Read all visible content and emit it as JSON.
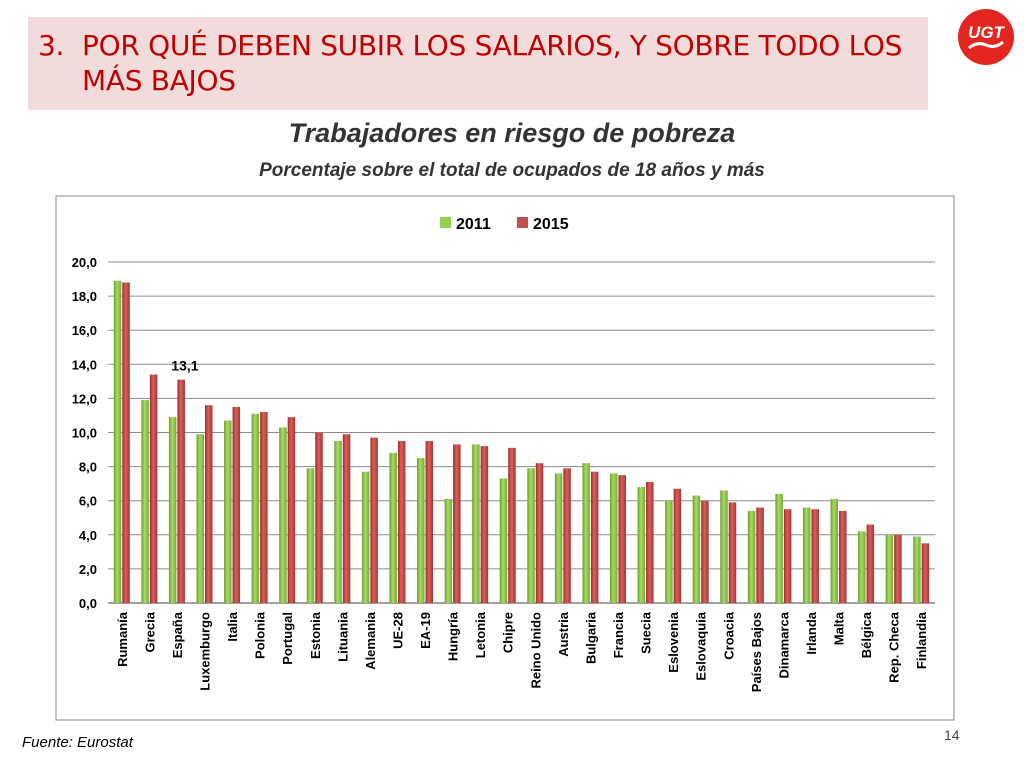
{
  "slide": {
    "title_number": "3.",
    "title_line1": "POR QUÉ DEBEN SUBIR LOS SALARIOS, Y SOBRE TODO LOS",
    "title_line2": "MÁS BAJOS",
    "logo_text": "UGT",
    "source": "Fuente: Eurostat",
    "page_number": "14"
  },
  "colors": {
    "title": "#c00000",
    "title_bg": "#f2dcdb",
    "series_2011": "#92d050",
    "series_2015": "#c0504d",
    "logo": "#e3261f"
  },
  "chart_data": {
    "type": "bar",
    "title": "Trabajadores en riesgo de pobreza",
    "subtitle": "Porcentaje sobre el total de ocupados de 18 años y más",
    "xlabel": "",
    "ylabel": "",
    "ylim": [
      0,
      20
    ],
    "yticks": [
      "0,0",
      "2,0",
      "4,0",
      "6,0",
      "8,0",
      "10,0",
      "12,0",
      "14,0",
      "16,0",
      "18,0",
      "20,0"
    ],
    "grid": true,
    "legend_position": "top-center",
    "categories": [
      "Rumanía",
      "Grecia",
      "España",
      "Luxemburgo",
      "Italia",
      "Polonia",
      "Portugal",
      "Estonia",
      "Lituania",
      "Alemania",
      "UE-28",
      "EA-19",
      "Hungría",
      "Letonia",
      "Chipre",
      "Reino Unido",
      "Austria",
      "Bulgaria",
      "Francia",
      "Suecia",
      "Eslovenia",
      "Eslovaquia",
      "Croacia",
      "Países Bajos",
      "Dinamarca",
      "Irlanda",
      "Malta",
      "Bélgica",
      "Rep. Checa",
      "Finlandia"
    ],
    "series": [
      {
        "name": "2011",
        "values": [
          18.9,
          11.9,
          10.9,
          9.9,
          10.7,
          11.1,
          10.3,
          7.9,
          9.5,
          7.7,
          8.8,
          8.5,
          6.1,
          9.3,
          7.3,
          7.9,
          7.6,
          8.2,
          7.6,
          6.8,
          6.0,
          6.3,
          6.6,
          5.4,
          6.4,
          5.6,
          6.1,
          4.2,
          4.0,
          3.9
        ]
      },
      {
        "name": "2015",
        "values": [
          18.8,
          13.4,
          13.1,
          11.6,
          11.5,
          11.2,
          10.9,
          10.0,
          9.9,
          9.7,
          9.5,
          9.5,
          9.3,
          9.2,
          9.1,
          8.2,
          7.9,
          7.7,
          7.5,
          7.1,
          6.7,
          6.0,
          5.9,
          5.6,
          5.5,
          5.5,
          5.4,
          4.6,
          4.0,
          3.5
        ]
      }
    ],
    "annotations": [
      {
        "category": "España",
        "series": "2015",
        "text": "13,1"
      }
    ]
  }
}
